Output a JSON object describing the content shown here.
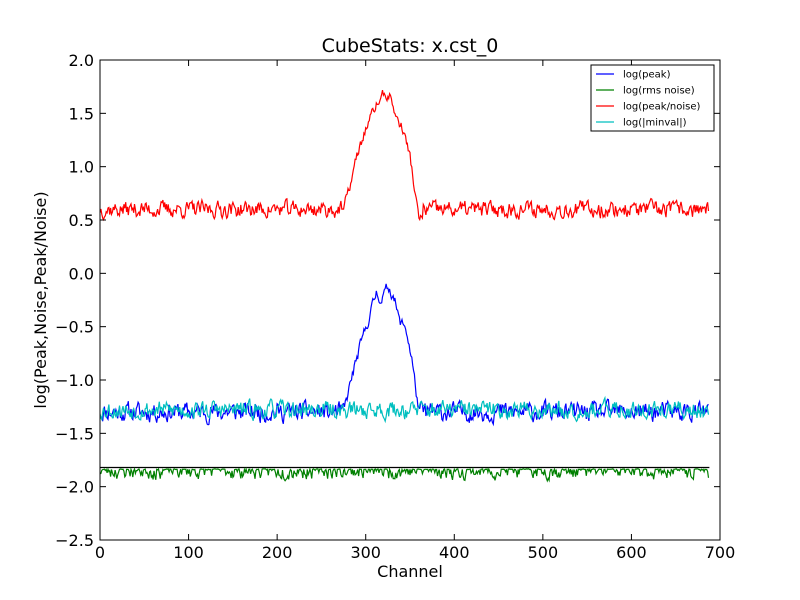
{
  "chart_data": {
    "type": "line",
    "title": "CubeStats: x.cst_0",
    "xlabel": "Channel",
    "ylabel": "log(Peak,Noise,Peak/Noise)",
    "xlim": [
      0,
      700
    ],
    "ylim": [
      -2.5,
      2.0
    ],
    "x_ticks": [
      0,
      100,
      200,
      300,
      400,
      500,
      600,
      700
    ],
    "y_ticks": [
      -2.5,
      -2.0,
      -1.5,
      -1.0,
      -0.5,
      0.0,
      0.5,
      1.0,
      1.5,
      2.0
    ],
    "x_tick_labels": [
      "0",
      "100",
      "200",
      "300",
      "400",
      "500",
      "600",
      "700"
    ],
    "y_tick_labels": [
      "−2.5",
      "−2.0",
      "−1.5",
      "−1.0",
      "−0.5",
      "0.0",
      "0.5",
      "1.0",
      "1.5",
      "2.0"
    ],
    "grid": false,
    "legend_position": "top-right",
    "n_channels": 688,
    "series": [
      {
        "name": "log(peak)",
        "color": "#0000ff",
        "baseline": -1.3,
        "noise_amp": 0.14,
        "seed": 11,
        "peak": [
          [
            275,
            -1.3
          ],
          [
            285,
            -0.95
          ],
          [
            295,
            -0.65
          ],
          [
            305,
            -0.38
          ],
          [
            312,
            -0.18
          ],
          [
            318,
            -0.25
          ],
          [
            325,
            -0.12
          ],
          [
            332,
            -0.22
          ],
          [
            338,
            -0.45
          ],
          [
            345,
            -0.5
          ],
          [
            352,
            -0.8
          ],
          [
            360,
            -1.3
          ]
        ]
      },
      {
        "name": "log(rms noise)",
        "color": "#008000",
        "baseline": -1.84,
        "noise_amp": 0.07,
        "seed": 23,
        "floor_style": "clipped_top",
        "ceiling": -1.82
      },
      {
        "name": "log(peak/noise)",
        "color": "#ff0000",
        "baseline": 0.6,
        "noise_amp": 0.12,
        "seed": 37,
        "peak": [
          [
            275,
            0.6
          ],
          [
            283,
            0.85
          ],
          [
            290,
            1.1
          ],
          [
            300,
            1.35
          ],
          [
            310,
            1.55
          ],
          [
            320,
            1.68
          ],
          [
            328,
            1.65
          ],
          [
            335,
            1.45
          ],
          [
            342,
            1.35
          ],
          [
            350,
            1.1
          ],
          [
            360,
            0.5
          ],
          [
            365,
            0.55
          ]
        ]
      },
      {
        "name": "log(|minval|)",
        "color": "#00bfbf",
        "baseline": -1.28,
        "noise_amp": 0.13,
        "seed": 53
      }
    ],
    "reference_lines": [
      {
        "y": -1.82,
        "color": "#000000"
      }
    ]
  }
}
